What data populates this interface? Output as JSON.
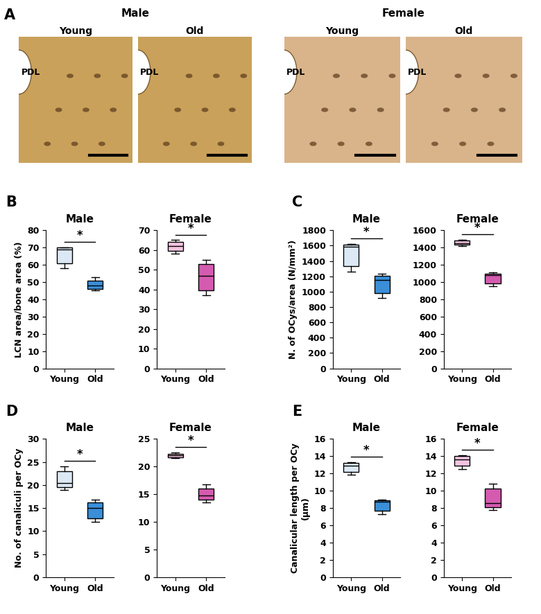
{
  "panel_a": {
    "panel": "A",
    "groups": [
      {
        "title": "Male",
        "images": [
          {
            "title": "Young",
            "annotations": [
              "PDL"
            ]
          },
          {
            "title": "Old",
            "annotations": [
              "PDL"
            ]
          }
        ]
      },
      {
        "title": "Female",
        "images": [
          {
            "title": "Young",
            "annotations": [
              "PDL"
            ]
          },
          {
            "title": "Old",
            "annotations": [
              "PDL"
            ]
          }
        ]
      }
    ]
  },
  "chart_data": [
    {
      "panel": "B",
      "type": "box",
      "title": "Male",
      "y_label": "LCN area/bone area (%)",
      "categories": [
        "Young",
        "Old"
      ],
      "boxes": [
        {
          "whislo": 58,
          "q1": 61,
          "med": 69,
          "q3": 70,
          "whishi": 70
        },
        {
          "whislo": 45,
          "q1": 46,
          "med": 48,
          "q3": 51,
          "whishi": 53
        }
      ],
      "colors": [
        "#dce9f5",
        "#3a8fd8"
      ],
      "ylim": [
        0,
        80
      ],
      "yticks": [
        0,
        10,
        20,
        30,
        40,
        50,
        60,
        70,
        80
      ],
      "significance": "*"
    },
    {
      "panel": "B",
      "type": "box",
      "title": "Female",
      "categories": [
        "Young",
        "Old"
      ],
      "boxes": [
        {
          "whislo": 58,
          "q1": 59.5,
          "med": 62,
          "q3": 64,
          "whishi": 65
        },
        {
          "whislo": 37,
          "q1": 39.5,
          "med": 47,
          "q3": 53,
          "whishi": 55
        }
      ],
      "colors": [
        "#f2c4e0",
        "#d45bb0"
      ],
      "ylim": [
        0,
        70
      ],
      "yticks": [
        0,
        10,
        20,
        30,
        40,
        50,
        60,
        70
      ],
      "significance": "*"
    },
    {
      "panel": "C",
      "type": "box",
      "title": "Male",
      "y_label": "N. of OCys/area (N/mm²)",
      "categories": [
        "Young",
        "Old"
      ],
      "boxes": [
        {
          "whislo": 1260,
          "q1": 1330,
          "med": 1590,
          "q3": 1610,
          "whishi": 1620
        },
        {
          "whislo": 920,
          "q1": 980,
          "med": 1150,
          "q3": 1210,
          "whishi": 1230
        }
      ],
      "colors": [
        "#dce9f5",
        "#3a8fd8"
      ],
      "ylim": [
        0,
        1800
      ],
      "yticks": [
        0,
        200,
        400,
        600,
        800,
        1000,
        1200,
        1400,
        1600,
        1800
      ],
      "significance": "*"
    },
    {
      "panel": "C",
      "type": "box",
      "title": "Female",
      "categories": [
        "Young",
        "Old"
      ],
      "boxes": [
        {
          "whislo": 1420,
          "q1": 1430,
          "med": 1450,
          "q3": 1480,
          "whishi": 1490
        },
        {
          "whislo": 950,
          "q1": 980,
          "med": 1080,
          "q3": 1100,
          "whishi": 1110
        }
      ],
      "colors": [
        "#f2c4e0",
        "#d45bb0"
      ],
      "ylim": [
        0,
        1600
      ],
      "yticks": [
        0,
        200,
        400,
        600,
        800,
        1000,
        1200,
        1400,
        1600
      ],
      "significance": "*"
    },
    {
      "panel": "D",
      "type": "box",
      "title": "Male",
      "y_label": "No. of canaliculi per OCy",
      "categories": [
        "Young",
        "Old"
      ],
      "boxes": [
        {
          "whislo": 19,
          "q1": 19.5,
          "med": 20.5,
          "q3": 23,
          "whishi": 24
        },
        {
          "whislo": 12,
          "q1": 12.8,
          "med": 15,
          "q3": 16.3,
          "whishi": 16.8
        }
      ],
      "colors": [
        "#dce9f5",
        "#3a8fd8"
      ],
      "ylim": [
        0,
        30
      ],
      "yticks": [
        0,
        5,
        10,
        15,
        20,
        25,
        30
      ],
      "significance": "*"
    },
    {
      "panel": "D",
      "type": "box",
      "title": "Female",
      "categories": [
        "Young",
        "Old"
      ],
      "boxes": [
        {
          "whislo": 21.5,
          "q1": 21.7,
          "med": 22,
          "q3": 22.3,
          "whishi": 22.5
        },
        {
          "whislo": 13.5,
          "q1": 14,
          "med": 14.8,
          "q3": 16,
          "whishi": 16.8
        }
      ],
      "colors": [
        "#f2c4e0",
        "#d45bb0"
      ],
      "ylim": [
        0,
        25
      ],
      "yticks": [
        0,
        5,
        10,
        15,
        20,
        25
      ],
      "significance": "*"
    },
    {
      "panel": "E",
      "type": "box",
      "title": "Male",
      "y_label": "Canalicular length per OCy\n(µm)",
      "categories": [
        "Young",
        "Old"
      ],
      "boxes": [
        {
          "whislo": 11.9,
          "q1": 12.2,
          "med": 12.9,
          "q3": 13.2,
          "whishi": 13.3
        },
        {
          "whislo": 7.3,
          "q1": 7.7,
          "med": 8.7,
          "q3": 8.9,
          "whishi": 9.0
        }
      ],
      "colors": [
        "#dce9f5",
        "#3a8fd8"
      ],
      "ylim": [
        0,
        16
      ],
      "yticks": [
        0,
        2,
        4,
        6,
        8,
        10,
        12,
        14,
        16
      ],
      "significance": "*"
    },
    {
      "panel": "E",
      "type": "box",
      "title": "Female",
      "categories": [
        "Young",
        "Old"
      ],
      "boxes": [
        {
          "whislo": 12.5,
          "q1": 12.9,
          "med": 13.6,
          "q3": 14.0,
          "whishi": 14.1
        },
        {
          "whislo": 7.8,
          "q1": 8.1,
          "med": 8.6,
          "q3": 10.3,
          "whishi": 10.8
        }
      ],
      "colors": [
        "#f2c4e0",
        "#d45bb0"
      ],
      "ylim": [
        0,
        16
      ],
      "yticks": [
        0,
        2,
        4,
        6,
        8,
        10,
        12,
        14,
        16
      ],
      "significance": "*"
    }
  ]
}
